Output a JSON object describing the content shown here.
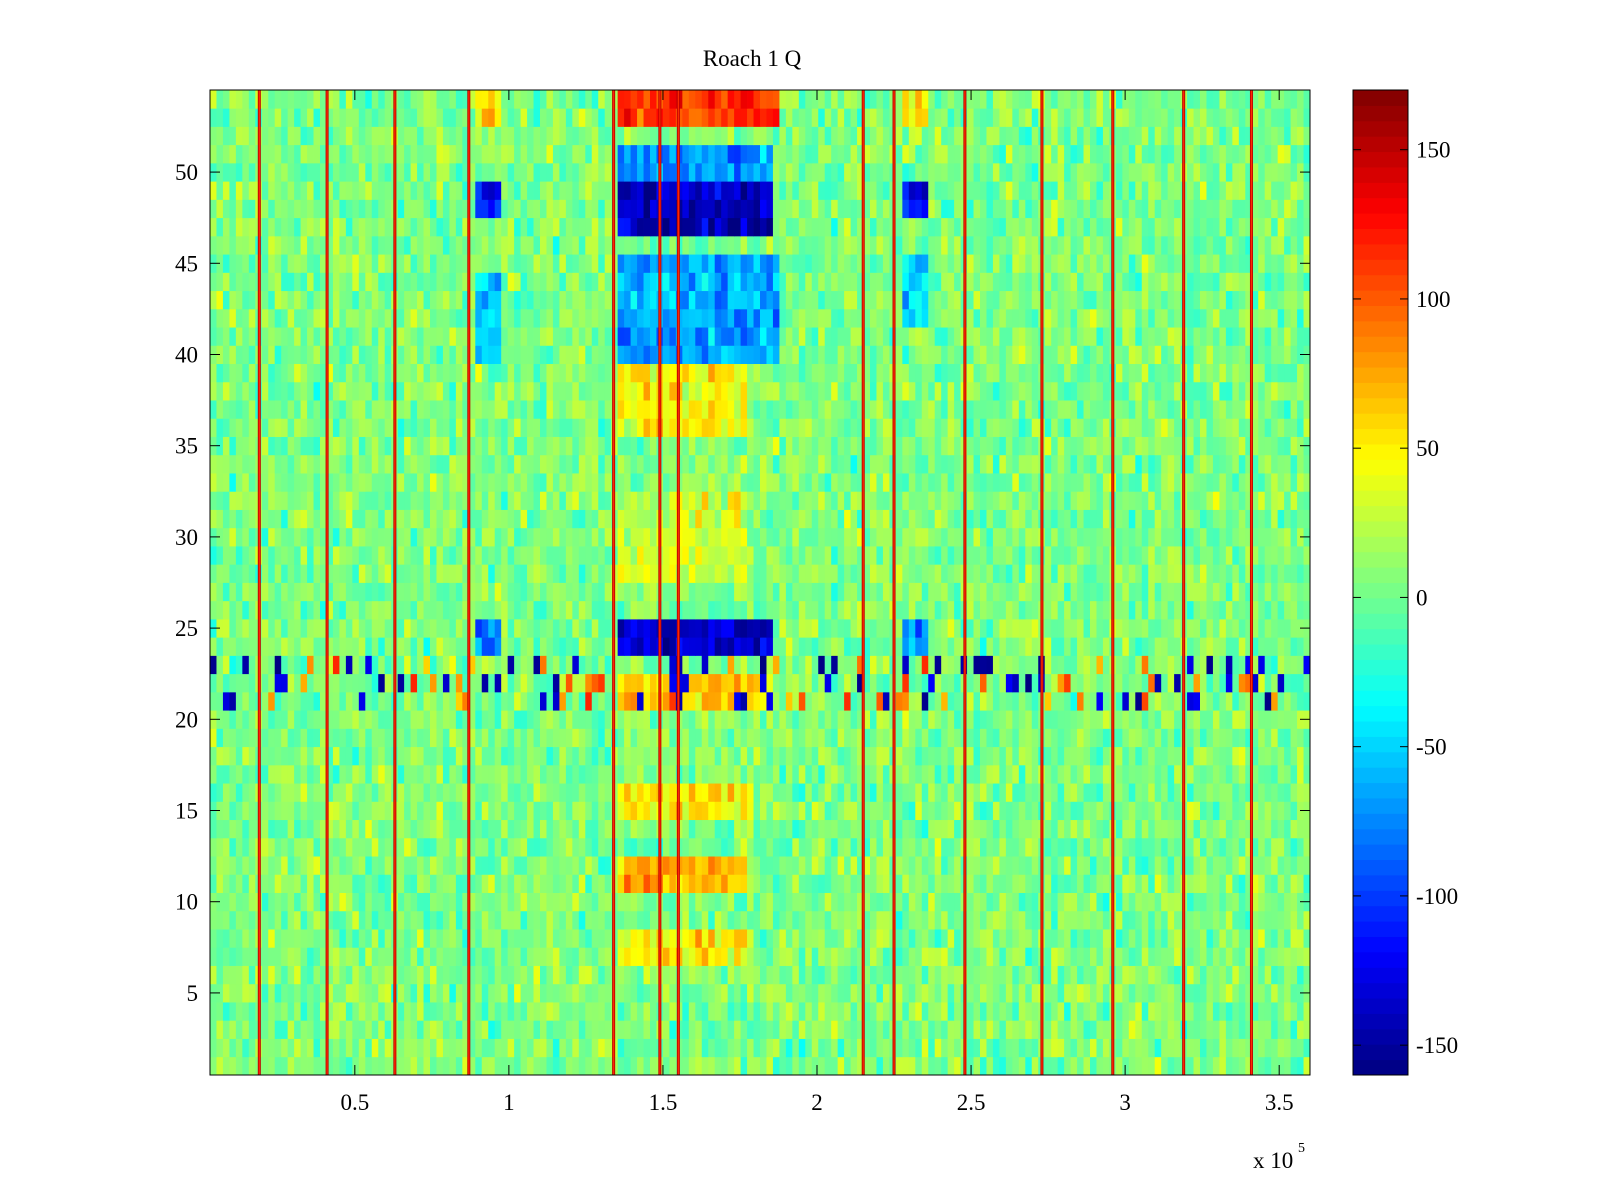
{
  "chart_data": {
    "type": "heatmap",
    "title": "Roach 1 Q",
    "xlabel": "",
    "ylabel": "",
    "x_exponent_label": "x 10",
    "x_exponent_power": "5",
    "xlim": [
      0.03,
      3.6
    ],
    "ylim": [
      0.5,
      54.5
    ],
    "x_ticks": [
      0.5,
      1,
      1.5,
      2,
      2.5,
      3,
      3.5
    ],
    "x_tick_labels": [
      "0.5",
      "1",
      "1.5",
      "2",
      "2.5",
      "3",
      "3.5"
    ],
    "y_ticks": [
      5,
      10,
      15,
      20,
      25,
      30,
      35,
      40,
      45,
      50
    ],
    "y_tick_labels": [
      "5",
      "10",
      "15",
      "20",
      "25",
      "30",
      "35",
      "40",
      "45",
      "50"
    ],
    "colorbar": {
      "colormap": "jet",
      "clim": [
        -160,
        170
      ],
      "ticks": [
        150,
        100,
        50,
        0,
        -50,
        -100,
        -150
      ],
      "tick_labels": [
        "150",
        "100",
        "50",
        "0",
        "-50",
        "-100",
        "-150"
      ]
    },
    "rows": 54,
    "background_level": 5,
    "vertical_lines_x": [
      0.19,
      0.41,
      0.63,
      0.87,
      1.34,
      1.49,
      1.55,
      2.15,
      2.25,
      2.48,
      2.73,
      2.96,
      3.19,
      3.41
    ],
    "noisy_rows": [
      21,
      22,
      23
    ],
    "regions": [
      {
        "x": [
          1.35,
          1.87
        ],
        "y": [
          53,
          54
        ],
        "value": 110
      },
      {
        "x": [
          0.9,
          0.98
        ],
        "y": [
          53,
          54
        ],
        "value": 60
      },
      {
        "x": [
          2.27,
          2.36
        ],
        "y": [
          53,
          54
        ],
        "value": 60
      },
      {
        "x": [
          1.35,
          1.85
        ],
        "y": [
          50,
          51
        ],
        "value": -75
      },
      {
        "x": [
          1.35,
          1.85
        ],
        "y": [
          47,
          49
        ],
        "value": -140
      },
      {
        "x": [
          0.9,
          0.98
        ],
        "y": [
          48,
          49
        ],
        "value": -110
      },
      {
        "x": [
          2.27,
          2.36
        ],
        "y": [
          48,
          49
        ],
        "value": -110
      },
      {
        "x": [
          1.35,
          1.87
        ],
        "y": [
          40,
          45
        ],
        "value": -65
      },
      {
        "x": [
          0.9,
          0.98
        ],
        "y": [
          40,
          44
        ],
        "value": -55
      },
      {
        "x": [
          2.27,
          2.36
        ],
        "y": [
          42,
          45
        ],
        "value": -50
      },
      {
        "x": [
          1.35,
          1.78
        ],
        "y": [
          36,
          39
        ],
        "value": 45
      },
      {
        "x": [
          1.35,
          1.78
        ],
        "y": [
          28,
          32
        ],
        "value": 35
      },
      {
        "x": [
          1.35,
          1.85
        ],
        "y": [
          24,
          25
        ],
        "value": -135
      },
      {
        "x": [
          0.9,
          0.98
        ],
        "y": [
          24,
          25
        ],
        "value": -90
      },
      {
        "x": [
          2.27,
          2.36
        ],
        "y": [
          24,
          25
        ],
        "value": -70
      },
      {
        "x": [
          1.35,
          1.85
        ],
        "y": [
          21,
          22
        ],
        "value": 60
      },
      {
        "x": [
          1.35,
          1.8
        ],
        "y": [
          15,
          16
        ],
        "value": 45
      },
      {
        "x": [
          1.35,
          1.78
        ],
        "y": [
          11,
          12
        ],
        "value": 75
      },
      {
        "x": [
          1.35,
          1.78
        ],
        "y": [
          7,
          8
        ],
        "value": 55
      }
    ]
  }
}
